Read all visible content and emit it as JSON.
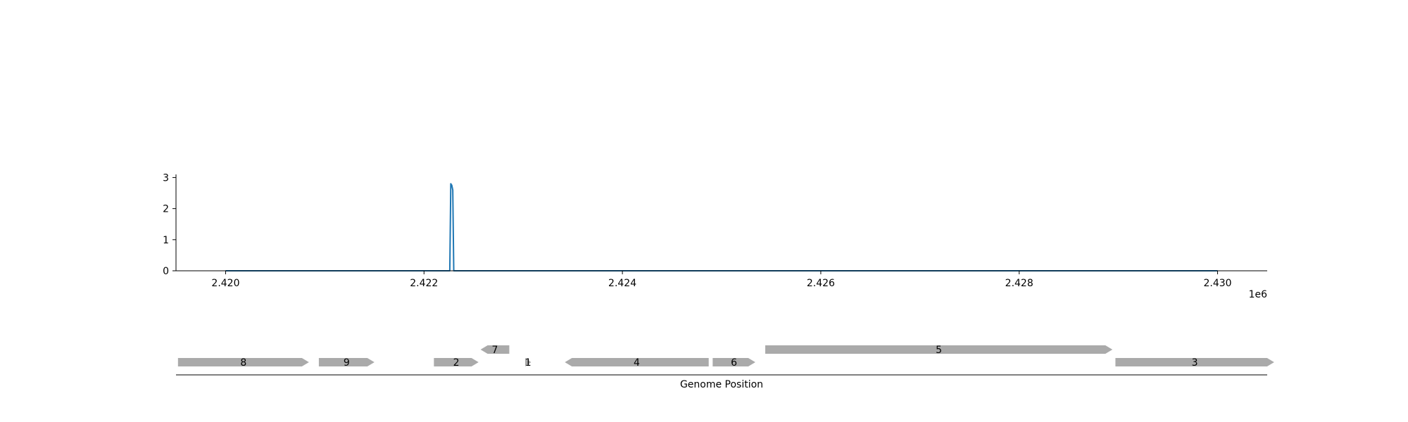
{
  "chart_data": [
    {
      "type": "line",
      "title": "",
      "xlabel": "",
      "ylabel": "",
      "x_offset_label": "1e6",
      "xlim": [
        2.4195,
        2.4305
      ],
      "ylim": [
        0,
        3.1
      ],
      "xticks": [
        2.42,
        2.422,
        2.424,
        2.426,
        2.428,
        2.43
      ],
      "xtick_labels": [
        "2.420",
        "2.422",
        "2.424",
        "2.426",
        "2.428",
        "2.430"
      ],
      "yticks": [
        0,
        1,
        2,
        3
      ],
      "ytick_labels": [
        "0",
        "1",
        "2",
        "3"
      ],
      "grid": false,
      "series": [
        {
          "color": "#1f77b4",
          "x": [
            2.42,
            2.42226,
            2.42227,
            2.42228,
            2.42229,
            2.4223,
            2.42231,
            2.43
          ],
          "y": [
            0,
            0,
            2.8,
            2.75,
            2.6,
            0,
            0,
            0
          ]
        }
      ]
    },
    {
      "type": "gene_track",
      "xlabel": "Genome Position",
      "feature_color": "#aaaaaa",
      "features": [
        {
          "label": "8",
          "start": 2.41952,
          "end": 2.42084,
          "strand": "+",
          "row": 0
        },
        {
          "label": "9",
          "start": 2.42094,
          "end": 2.4215,
          "strand": "+",
          "row": 0
        },
        {
          "label": "2",
          "start": 2.4221,
          "end": 2.42255,
          "strand": "+",
          "row": 0
        },
        {
          "label": "7",
          "start": 2.42257,
          "end": 2.42286,
          "strand": "-",
          "row": 1
        },
        {
          "label": "1",
          "start": 2.42302,
          "end": 2.42308,
          "strand": "+",
          "row": 0
        },
        {
          "label": "4",
          "start": 2.42342,
          "end": 2.42487,
          "strand": "-",
          "row": 0
        },
        {
          "label": "6",
          "start": 2.42491,
          "end": 2.42534,
          "strand": "+",
          "row": 0
        },
        {
          "label": "5",
          "start": 2.42544,
          "end": 2.42894,
          "strand": "+",
          "row": 1
        },
        {
          "label": "3",
          "start": 2.42897,
          "end": 2.43057,
          "strand": "+",
          "row": 0
        }
      ]
    }
  ]
}
